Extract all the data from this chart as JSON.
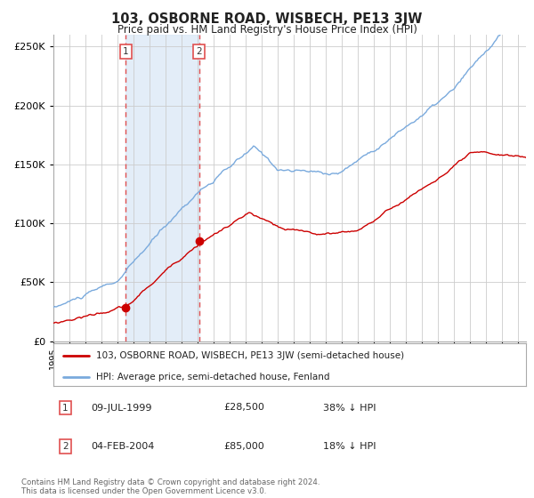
{
  "title": "103, OSBORNE ROAD, WISBECH, PE13 3JW",
  "subtitle": "Price paid vs. HM Land Registry's House Price Index (HPI)",
  "red_label": "103, OSBORNE ROAD, WISBECH, PE13 3JW (semi-detached house)",
  "blue_label": "HPI: Average price, semi-detached house, Fenland",
  "footer": "Contains HM Land Registry data © Crown copyright and database right 2024.\nThis data is licensed under the Open Government Licence v3.0.",
  "purchase1_date": "09-JUL-1999",
  "purchase1_price": "£28,500",
  "purchase1_pct": "38% ↓ HPI",
  "purchase2_date": "04-FEB-2004",
  "purchase2_price": "£85,000",
  "purchase2_pct": "18% ↓ HPI",
  "vline1_x": 1999.52,
  "vline2_x": 2004.09,
  "shade_x1": 1999.52,
  "shade_x2": 2004.09,
  "ylim": [
    0,
    260000
  ],
  "xlim": [
    1995.0,
    2024.5
  ],
  "background_color": "#ffffff",
  "plot_bg_color": "#ffffff",
  "grid_color": "#cccccc",
  "vline_color": "#e05050",
  "shade_color": "#dce9f7",
  "red_line_color": "#cc0000",
  "blue_line_color": "#7aaadd",
  "dot_color": "#cc0000"
}
